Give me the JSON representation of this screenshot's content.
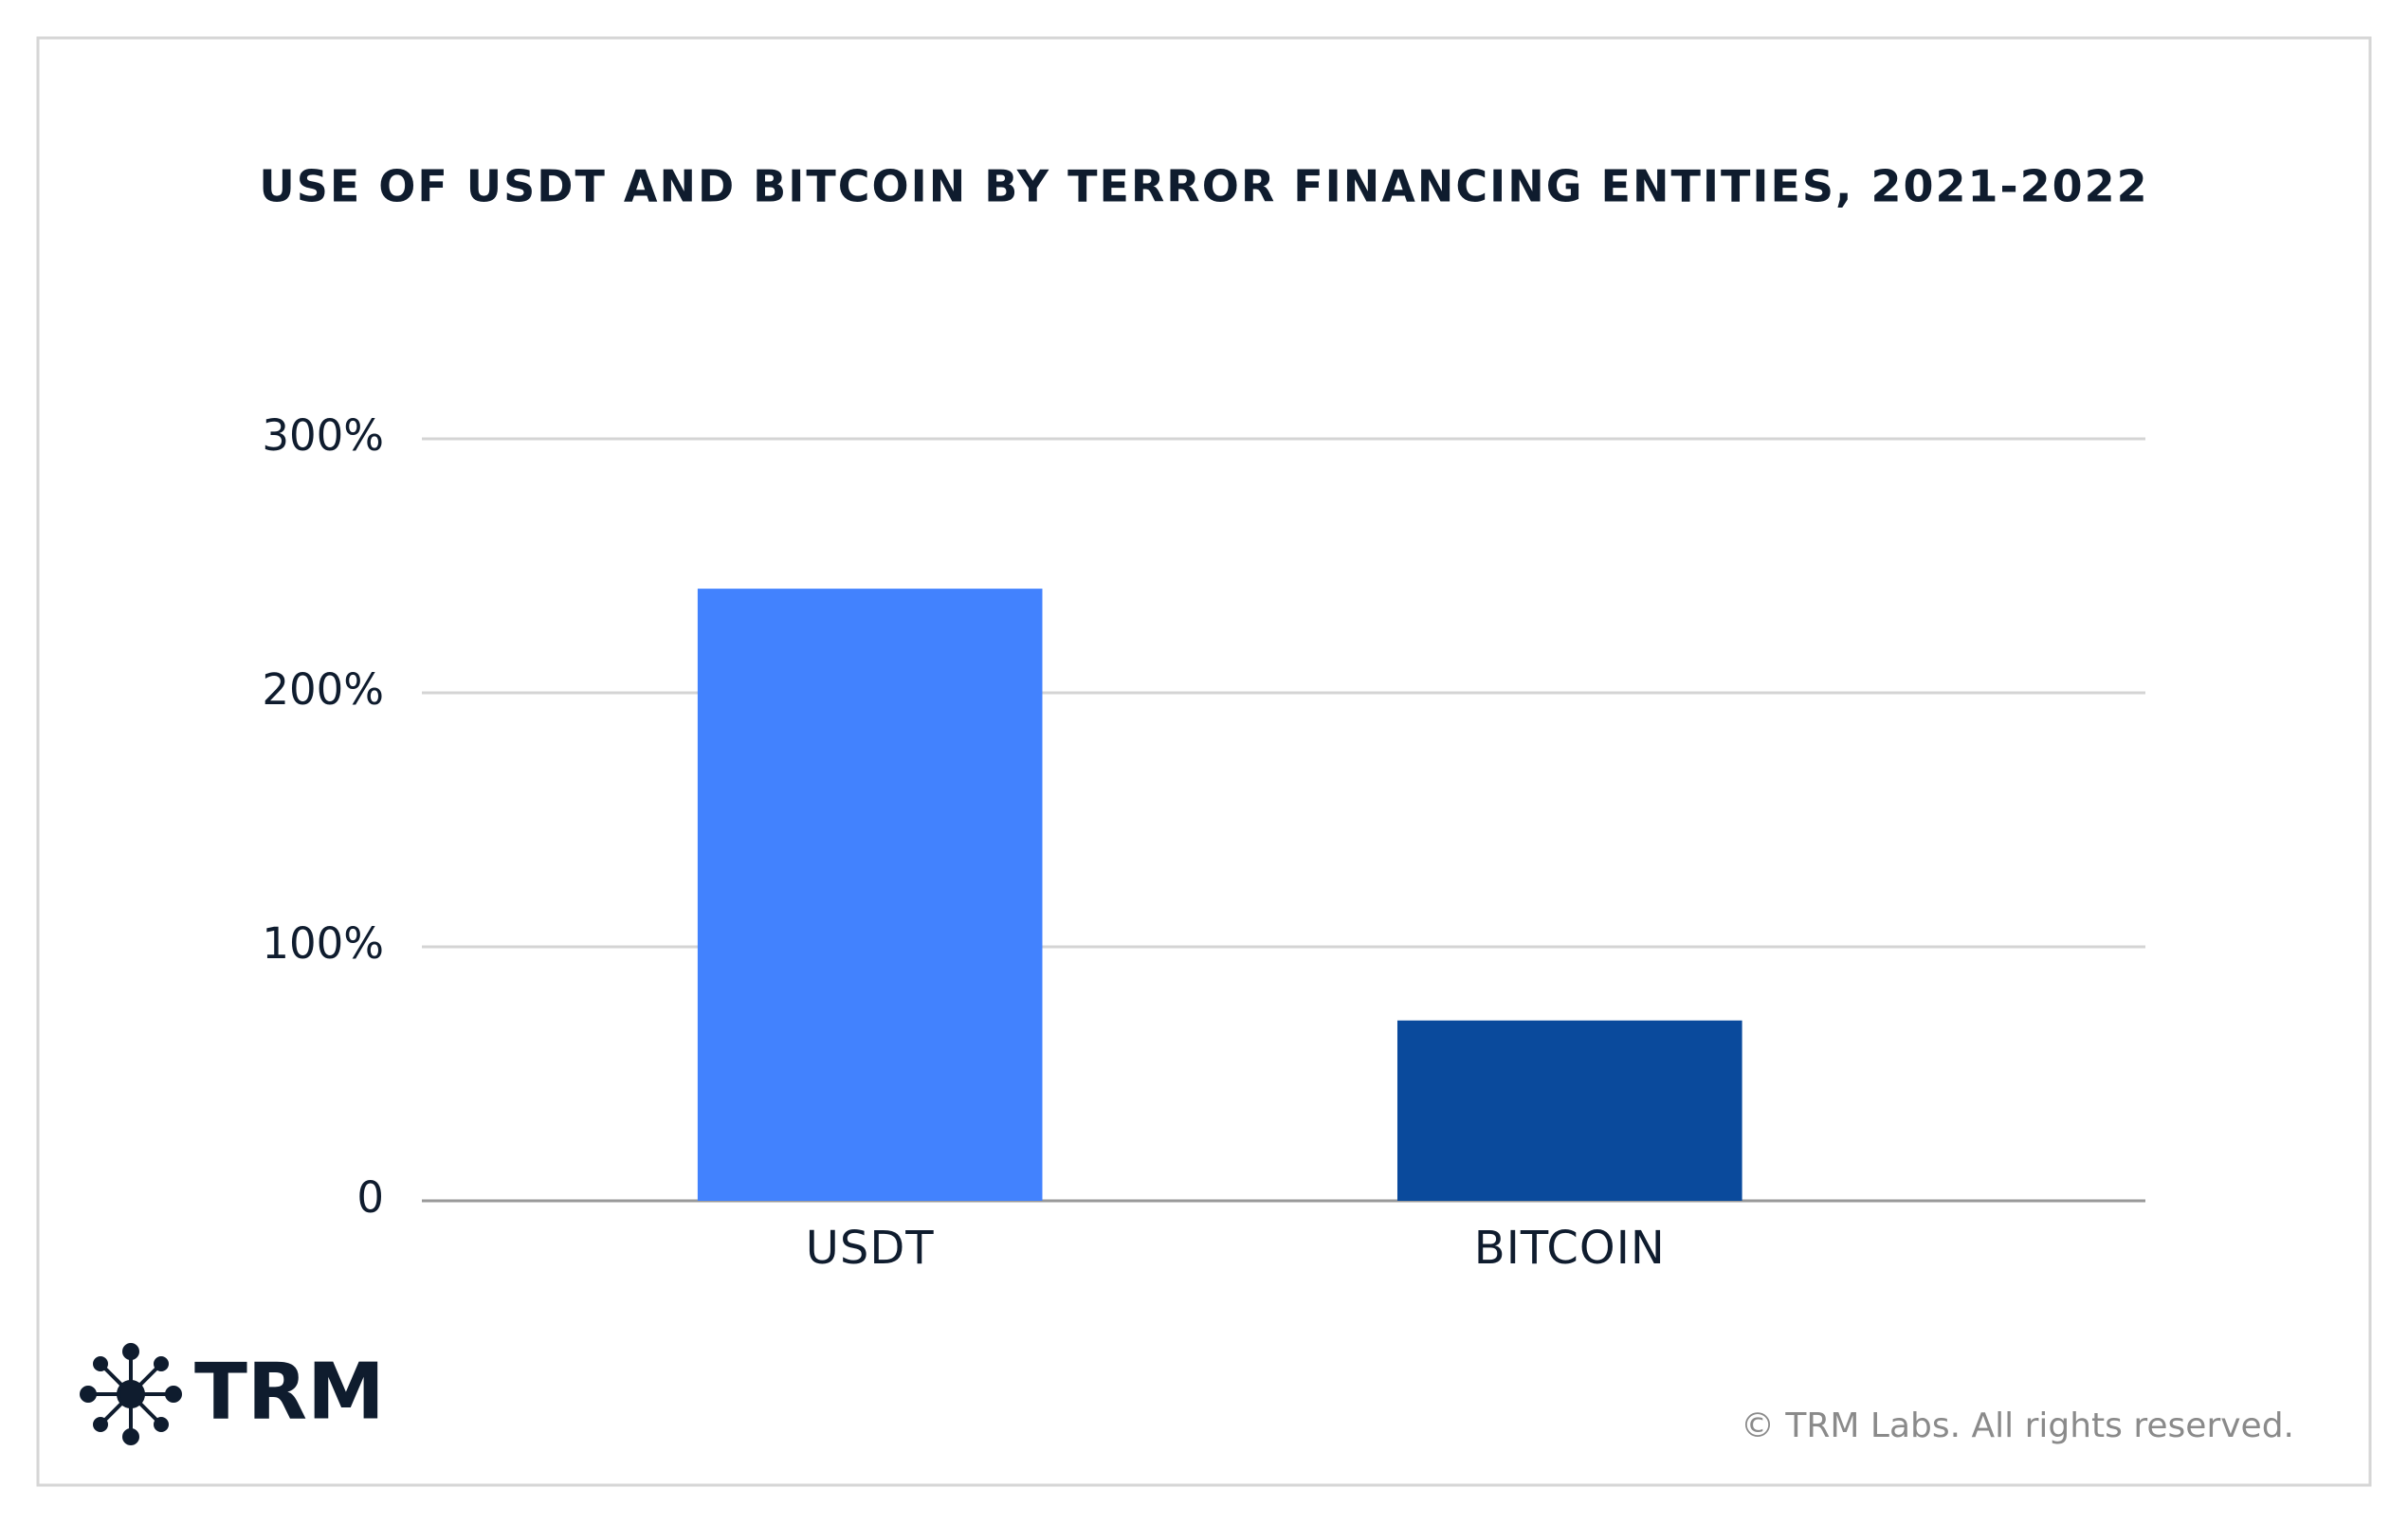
{
  "chart_data": {
    "type": "bar",
    "title": "USE OF USDT AND BITCOIN BY TERROR FINANCING ENTITIES, 2021-2022",
    "categories": [
      "USDT",
      "BITCOIN"
    ],
    "values": [
      241,
      71
    ],
    "colors": [
      "#4282fe",
      "#0a4a9c"
    ],
    "ylim": [
      0,
      300
    ],
    "yticks": [
      0,
      {
        "value": 100,
        "label": "100%"
      },
      {
        "value": 200,
        "label": "200%"
      },
      {
        "value": 300,
        "label": "300%"
      }
    ],
    "grid": true
  },
  "branding": {
    "logo": "TRM",
    "copyright": "© TRM Labs. All rights reserved."
  }
}
